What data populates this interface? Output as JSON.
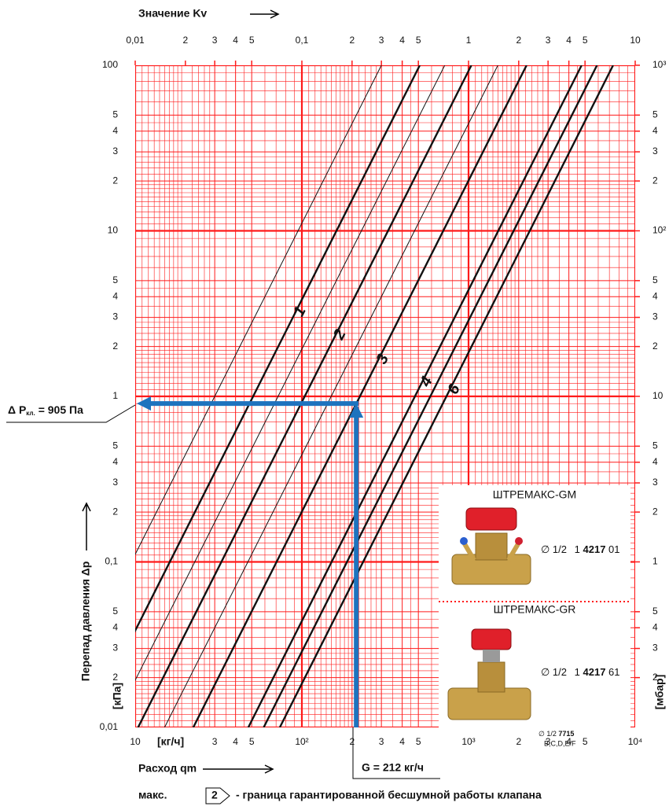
{
  "chart_data": {
    "type": "line",
    "title": "Значение Kv",
    "x_label": "Расход qm",
    "x_unit": "[кг/ч]",
    "y_label": "Перепад давления Δp",
    "y_unit": "[кПа]",
    "y2_unit": "[мбар]",
    "xlim": [
      10,
      10000
    ],
    "ylim": [
      0.01,
      100
    ],
    "x2lim": [
      0.01,
      10
    ],
    "y2lim": [
      0.1,
      1000
    ],
    "log_scale": true,
    "grid": true,
    "grid_color": "#ff1a1a",
    "xticks": [
      10,
      {
        "value": 30,
        "label": "3"
      },
      {
        "value": 40,
        "label": "4"
      },
      {
        "value": 50,
        "label": "5"
      },
      {
        "value": 100,
        "label": "10²"
      },
      {
        "value": 200,
        "label": "2"
      },
      {
        "value": 300,
        "label": "3"
      },
      {
        "value": 400,
        "label": "4"
      },
      {
        "value": 500,
        "label": "5"
      },
      {
        "value": 1000,
        "label": "10³"
      },
      {
        "value": 2000,
        "label": "2"
      },
      {
        "value": 3000,
        "label": "3"
      },
      {
        "value": 4000,
        "label": "4"
      },
      {
        "value": 5000,
        "label": "5"
      },
      {
        "value": 10000,
        "label": "10⁴"
      }
    ],
    "yticks": [
      100,
      {
        "value": 50,
        "label": "5"
      },
      {
        "value": 40,
        "label": "4"
      },
      {
        "value": 30,
        "label": "3"
      },
      {
        "value": 20,
        "label": "2"
      },
      10,
      5,
      4,
      3,
      2,
      1,
      {
        "value": 0.5,
        "label": "5"
      },
      {
        "value": 0.4,
        "label": "4"
      },
      {
        "value": 0.3,
        "label": "3"
      },
      {
        "value": 0.2,
        "label": "2"
      },
      {
        "value": 0.1,
        "label": "0,1"
      },
      {
        "value": 0.05,
        "label": "5"
      },
      {
        "value": 0.04,
        "label": "4"
      },
      {
        "value": 0.03,
        "label": "3"
      },
      {
        "value": 0.02,
        "label": "2"
      },
      {
        "value": 0.01,
        "label": "0,01"
      }
    ],
    "x2ticks": [
      {
        "value": 0.01,
        "label": "0,01"
      },
      {
        "value": 0.02,
        "label": "2"
      },
      {
        "value": 0.03,
        "label": "3"
      },
      {
        "value": 0.04,
        "label": "4"
      },
      {
        "value": 0.05,
        "label": "5"
      },
      {
        "value": 0.1,
        "label": "0,1"
      },
      {
        "value": 0.2,
        "label": "2"
      },
      {
        "value": 0.3,
        "label": "3"
      },
      {
        "value": 0.4,
        "label": "4"
      },
      {
        "value": 0.5,
        "label": "5"
      },
      1,
      2,
      3,
      4,
      5,
      10
    ],
    "y2ticks": [
      {
        "value": 1000,
        "label": "10³"
      },
      {
        "value": 500,
        "label": "5"
      },
      {
        "value": 400,
        "label": "4"
      },
      {
        "value": 300,
        "label": "3"
      },
      {
        "value": 200,
        "label": "2"
      },
      {
        "value": 100,
        "label": "10²"
      },
      {
        "value": 50,
        "label": "5"
      },
      {
        "value": 40,
        "label": "4"
      },
      {
        "value": 30,
        "label": "3"
      },
      {
        "value": 20,
        "label": "2"
      },
      10,
      5,
      4,
      3,
      2,
      1,
      {
        "value": 0.5,
        "label": "5"
      },
      {
        "value": 0.4,
        "label": "4"
      },
      {
        "value": 0.3,
        "label": "3"
      },
      {
        "value": 0.2,
        "label": "2"
      }
    ],
    "lines": [
      {
        "label": null,
        "kv": 0.3,
        "weight": "thin"
      },
      {
        "label": "1",
        "kv": 0.51,
        "weight": "thick"
      },
      {
        "label": null,
        "kv": 0.72,
        "weight": "thin"
      },
      {
        "label": "2",
        "kv": 1.04,
        "weight": "thick"
      },
      {
        "label": null,
        "kv": 1.5,
        "weight": "thin"
      },
      {
        "label": "3",
        "kv": 2.23,
        "weight": "thick"
      },
      {
        "label": "4",
        "kv": 4.77,
        "weight": "thick"
      },
      {
        "label": null,
        "kv": 5.9,
        "weight": "thick"
      },
      {
        "label": "6",
        "kv": 7.37,
        "weight": "thick"
      }
    ],
    "operating_point": {
      "q": 212,
      "dp": 0.905,
      "color": "#1e73be"
    },
    "annotation_dp": {
      "prefix": "Δ P",
      "subscript": "кл.",
      "suffix": "= 905 Па"
    },
    "annotation_g": "G = 212 кг/ч",
    "footer": {
      "prefix": "макс.",
      "symbol": "2",
      "text": "- граница гарантированной бесшумной работы клапана"
    }
  },
  "products": [
    {
      "name": "ШТРЕМАКС-GM",
      "size": "∅ 1/2",
      "code_a": "1",
      "code_b": "4217",
      "code_c": "01"
    },
    {
      "name": "ШТРЕМАКС-GR",
      "size": "∅ 1/2",
      "code_a": "1",
      "code_b": "4217",
      "code_c": "61"
    }
  ],
  "extra": {
    "size": "∅ 1/2",
    "code": "7715",
    "variants": "B,C,D,E/F"
  }
}
